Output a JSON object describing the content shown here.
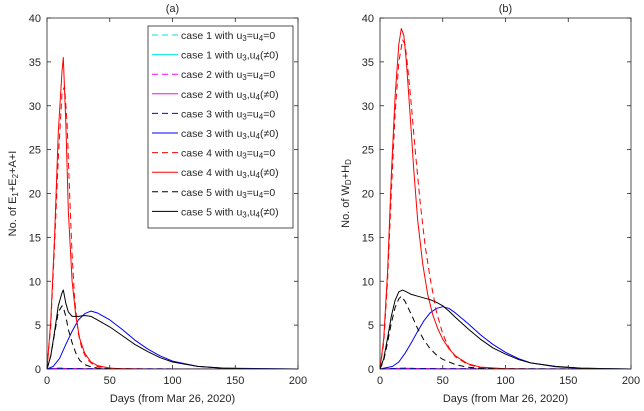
{
  "chart_data": [
    {
      "type": "line",
      "panel_id": "a",
      "title": "(a)",
      "xlabel": "Days (from Mar 26, 2020)",
      "ylabel": "No. of E1+E2+A+I",
      "ylabel_parts": [
        "No. of E",
        "1",
        "+E",
        "2",
        "+A+I"
      ],
      "xlim": [
        0,
        200
      ],
      "ylim": [
        0,
        40
      ],
      "xticks": [
        0,
        50,
        100,
        150,
        200
      ],
      "yticks": [
        0,
        5,
        10,
        15,
        20,
        25,
        30,
        35,
        40
      ],
      "grid": false,
      "legend_position": "top-right",
      "legend": [
        {
          "text": "case 1 with u3=u4=0",
          "parts": [
            "case 1 with u",
            "3",
            "=u",
            "4",
            "=0"
          ],
          "color": "#00e5e5",
          "dash": "dashed"
        },
        {
          "text": "case 1 with u3,u4(≠0)",
          "parts": [
            "case 1 with u",
            "3",
            ",u",
            "4",
            "(≠0)"
          ],
          "color": "#00e5e5",
          "dash": "solid"
        },
        {
          "text": "case 2 with u3=u4=0",
          "parts": [
            "case 2 with u",
            "3",
            "=u",
            "4",
            "=0"
          ],
          "color": "#ff00ff",
          "dash": "dashed"
        },
        {
          "text": "case 2 with u3,u4(≠0)",
          "parts": [
            "case 2 with u",
            "3",
            ",u",
            "4",
            "(≠0)"
          ],
          "color": "#ff00ff",
          "dash": "solid"
        },
        {
          "text": "case 3 with u3=u4=0",
          "parts": [
            "case 3 with u",
            "3",
            "=u",
            "4",
            "=0"
          ],
          "color": "#0000ff",
          "dash": "dashed"
        },
        {
          "text": "case 3 with u3,u4(≠0)",
          "parts": [
            "case 3 with u",
            "3",
            ",u",
            "4",
            "(≠0)"
          ],
          "color": "#0000ff",
          "dash": "solid"
        },
        {
          "text": "case 4 with u3=u4=0",
          "parts": [
            "case 4 with u",
            "3",
            "=u",
            "4",
            "=0"
          ],
          "color": "#ff0000",
          "dash": "dashed"
        },
        {
          "text": "case 4 with u3,u4(≠0)",
          "parts": [
            "case 4 with u",
            "3",
            ",u",
            "4",
            "(≠0)"
          ],
          "color": "#ff0000",
          "dash": "solid"
        },
        {
          "text": "case 5 with u3=u4=0",
          "parts": [
            "case 5 with u",
            "3",
            "=u",
            "4",
            "=0"
          ],
          "color": "#000000",
          "dash": "dashed"
        },
        {
          "text": "case 5 with u3,u4(≠0)",
          "parts": [
            "case 5 with u",
            "3",
            ",u",
            "4",
            "(≠0)"
          ],
          "color": "#000000",
          "dash": "solid"
        }
      ],
      "series": [
        {
          "name": "case 1 with u3=u4=0",
          "color": "#00e5e5",
          "dash": "dashed",
          "x": [
            0,
            5,
            10,
            15,
            20,
            30,
            50,
            200
          ],
          "y": [
            0,
            0.03,
            0.05,
            0.04,
            0.03,
            0.02,
            0.01,
            0
          ]
        },
        {
          "name": "case 1 with u3,u4(≠0)",
          "color": "#00e5e5",
          "dash": "solid",
          "x": [
            0,
            5,
            10,
            15,
            20,
            30,
            50,
            200
          ],
          "y": [
            0,
            0.03,
            0.05,
            0.04,
            0.03,
            0.02,
            0.01,
            0
          ]
        },
        {
          "name": "case 2 with u3=u4=0",
          "color": "#ff00ff",
          "dash": "dashed",
          "x": [
            0,
            5,
            10,
            15,
            20,
            30,
            50,
            200
          ],
          "y": [
            0,
            0.05,
            0.08,
            0.06,
            0.05,
            0.03,
            0.01,
            0
          ]
        },
        {
          "name": "case 2 with u3,u4(≠0)",
          "color": "#ff00ff",
          "dash": "solid",
          "x": [
            0,
            5,
            10,
            15,
            20,
            30,
            50,
            200
          ],
          "y": [
            0,
            0.05,
            0.08,
            0.06,
            0.05,
            0.03,
            0.01,
            0
          ]
        },
        {
          "name": "case 3 with u3=u4=0",
          "color": "#0000ff",
          "dash": "dashed",
          "x": [
            0,
            5,
            10,
            15,
            20,
            30,
            50,
            200
          ],
          "y": [
            0,
            0.05,
            0.08,
            0.06,
            0.05,
            0.03,
            0.01,
            0
          ]
        },
        {
          "name": "case 3 with u3,u4(≠0)",
          "color": "#0000ff",
          "dash": "solid",
          "x": [
            0,
            5,
            10,
            15,
            20,
            25,
            30,
            35,
            40,
            50,
            60,
            70,
            80,
            90,
            100,
            120,
            140,
            200
          ],
          "y": [
            0,
            0.3,
            1.2,
            2.8,
            4.3,
            5.6,
            6.3,
            6.6,
            6.4,
            5.6,
            4.5,
            3.3,
            2.3,
            1.5,
            0.9,
            0.3,
            0.1,
            0
          ]
        },
        {
          "name": "case 4 with u3=u4=0",
          "color": "#ff0000",
          "dash": "dashed",
          "x": [
            0,
            3,
            6,
            9,
            12,
            14,
            16,
            18,
            20,
            22,
            25,
            28,
            32,
            36,
            40,
            50,
            60,
            80,
            200
          ],
          "y": [
            0,
            5,
            14,
            24,
            31.5,
            32.2,
            28,
            20,
            13,
            8,
            4,
            2.2,
            1.1,
            0.6,
            0.3,
            0.1,
            0.03,
            0,
            0
          ]
        },
        {
          "name": "case 4 with u3,u4(≠0)",
          "color": "#ff0000",
          "dash": "solid",
          "x": [
            0,
            3,
            6,
            9,
            12,
            13,
            15,
            17,
            20,
            23,
            26,
            30,
            35,
            40,
            50,
            60,
            80,
            200
          ],
          "y": [
            0,
            5.5,
            15,
            27,
            34,
            35.5,
            28,
            18,
            10,
            6,
            3.5,
            1.8,
            0.8,
            0.4,
            0.1,
            0.03,
            0,
            0
          ]
        },
        {
          "name": "case 5 with u3=u4=0",
          "color": "#000000",
          "dash": "dashed",
          "x": [
            0,
            3,
            6,
            9,
            12,
            13,
            15,
            17,
            20,
            23,
            26,
            30,
            35,
            40,
            50,
            60,
            80,
            200
          ],
          "y": [
            0,
            1.5,
            4,
            6.5,
            7.2,
            7,
            6,
            4.5,
            3,
            1.8,
            1,
            0.5,
            0.25,
            0.12,
            0.03,
            0.01,
            0,
            0
          ]
        },
        {
          "name": "case 5 with u3,u4(≠0)",
          "color": "#000000",
          "dash": "solid",
          "x": [
            0,
            3,
            6,
            9,
            12,
            13,
            15,
            17,
            20,
            25,
            30,
            35,
            40,
            50,
            60,
            70,
            80,
            90,
            100,
            120,
            140,
            160,
            200
          ],
          "y": [
            0,
            1.5,
            4.2,
            7.2,
            8.7,
            9,
            7.5,
            6.5,
            6,
            6,
            6.1,
            6,
            5.6,
            4.8,
            3.8,
            2.8,
            2,
            1.3,
            0.8,
            0.3,
            0.1,
            0.03,
            0
          ]
        }
      ]
    },
    {
      "type": "line",
      "panel_id": "b",
      "title": "(b)",
      "xlabel": "Days (from Mar 26, 2020)",
      "ylabel": "No. of WD+HD",
      "ylabel_parts": [
        "No. of W",
        "D",
        "+H",
        "D"
      ],
      "xlim": [
        0,
        200
      ],
      "ylim": [
        0,
        40
      ],
      "xticks": [
        0,
        50,
        100,
        150,
        200
      ],
      "yticks": [
        0,
        5,
        10,
        15,
        20,
        25,
        30,
        35,
        40
      ],
      "grid": false,
      "series": [
        {
          "name": "case 1 with u3=u4=0",
          "color": "#00e5e5",
          "dash": "dashed",
          "x": [
            0,
            10,
            20,
            30,
            50,
            200
          ],
          "y": [
            0,
            0.03,
            0.05,
            0.04,
            0.02,
            0
          ]
        },
        {
          "name": "case 1 with u3,u4(≠0)",
          "color": "#00e5e5",
          "dash": "solid",
          "x": [
            0,
            10,
            20,
            30,
            50,
            200
          ],
          "y": [
            0,
            0.03,
            0.05,
            0.04,
            0.02,
            0
          ]
        },
        {
          "name": "case 2 with u3=u4=0",
          "color": "#ff00ff",
          "dash": "dashed",
          "x": [
            0,
            10,
            20,
            30,
            50,
            200
          ],
          "y": [
            0,
            0.05,
            0.08,
            0.06,
            0.03,
            0
          ]
        },
        {
          "name": "case 2 with u3,u4(≠0)",
          "color": "#ff00ff",
          "dash": "solid",
          "x": [
            0,
            10,
            20,
            30,
            50,
            200
          ],
          "y": [
            0,
            0.05,
            0.08,
            0.06,
            0.03,
            0
          ]
        },
        {
          "name": "case 3 with u3=u4=0",
          "color": "#0000ff",
          "dash": "dashed",
          "x": [
            0,
            10,
            20,
            30,
            50,
            200
          ],
          "y": [
            0,
            0.05,
            0.08,
            0.06,
            0.03,
            0
          ]
        },
        {
          "name": "case 3 with u3,u4(≠0)",
          "color": "#0000ff",
          "dash": "solid",
          "x": [
            0,
            10,
            15,
            20,
            25,
            30,
            35,
            40,
            45,
            50,
            55,
            60,
            70,
            80,
            90,
            100,
            110,
            120,
            140,
            160,
            200
          ],
          "y": [
            0,
            0.3,
            0.8,
            1.8,
            3,
            4.3,
            5.5,
            6.4,
            6.9,
            7.1,
            6.9,
            6.4,
            5.2,
            3.9,
            2.8,
            1.9,
            1.2,
            0.7,
            0.25,
            0.08,
            0
          ]
        },
        {
          "name": "case 4 with u3=u4=0",
          "color": "#ff0000",
          "dash": "dashed",
          "x": [
            0,
            3,
            6,
            9,
            12,
            15,
            18,
            20,
            22,
            25,
            28,
            32,
            36,
            40,
            45,
            50,
            55,
            60,
            70,
            80,
            100,
            120,
            200
          ],
          "y": [
            0,
            3,
            10,
            20,
            29,
            35,
            37.5,
            37,
            34.5,
            30,
            25,
            19,
            14,
            10.3,
            6.5,
            4,
            2.4,
            1.4,
            0.5,
            0.18,
            0.02,
            0,
            0
          ]
        },
        {
          "name": "case 4 with u3,u4(≠0)",
          "color": "#ff0000",
          "dash": "solid",
          "x": [
            0,
            3,
            6,
            9,
            12,
            15,
            17,
            19,
            21,
            24,
            27,
            30,
            34,
            38,
            42,
            46,
            50,
            55,
            60,
            70,
            80,
            100,
            120,
            200
          ],
          "y": [
            0,
            3.5,
            11,
            22,
            31,
            37,
            38.8,
            38,
            35,
            29,
            22.5,
            17,
            12,
            8.5,
            6.2,
            4.6,
            3.4,
            2.3,
            1.5,
            0.6,
            0.22,
            0.03,
            0,
            0
          ]
        },
        {
          "name": "case 5 with u3=u4=0",
          "color": "#000000",
          "dash": "dashed",
          "x": [
            0,
            3,
            6,
            9,
            12,
            15,
            17,
            20,
            25,
            30,
            35,
            40,
            45,
            50,
            60,
            70,
            80,
            100,
            200
          ],
          "y": [
            0,
            1,
            3,
            5.2,
            7,
            8,
            8.3,
            7.7,
            6.2,
            4.6,
            3.3,
            2.3,
            1.6,
            1.1,
            0.5,
            0.2,
            0.08,
            0.01,
            0
          ]
        },
        {
          "name": "case 5 with u3,u4(≠0)",
          "color": "#000000",
          "dash": "solid",
          "x": [
            0,
            3,
            6,
            9,
            12,
            15,
            18,
            21,
            25,
            30,
            35,
            40,
            45,
            50,
            55,
            60,
            70,
            80,
            90,
            100,
            110,
            120,
            140,
            160,
            180,
            200
          ],
          "y": [
            0,
            1.2,
            3.5,
            6,
            7.8,
            8.8,
            9,
            8.8,
            8.5,
            8.3,
            8.1,
            7.9,
            7.6,
            7.2,
            6.6,
            5.9,
            4.6,
            3.4,
            2.4,
            1.7,
            1.1,
            0.7,
            0.3,
            0.1,
            0.04,
            0
          ]
        }
      ]
    }
  ]
}
